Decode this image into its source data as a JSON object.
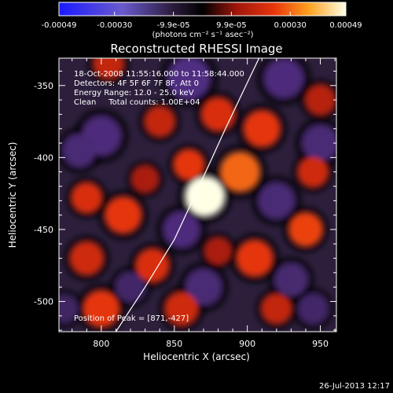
{
  "chart_data": {
    "type": "heatmap",
    "title": "Reconstructed RHESSI Image",
    "xlabel": "Heliocentric X (arcsec)",
    "ylabel": "Heliocentric Y (arcsec)",
    "xlim": [
      771,
      961
    ],
    "ylim": [
      -521,
      -331
    ],
    "xticks": [
      800,
      850,
      900,
      950
    ],
    "yticks": [
      -350,
      -400,
      -450,
      -500
    ],
    "colorbar": {
      "range": [
        -0.00049,
        0.00049
      ],
      "tick_values": [
        -0.00049,
        -0.0003,
        -9.9e-05,
        9.9e-05,
        0.0003,
        0.00049
      ],
      "tick_labels": [
        "-0.00049",
        "-0.00030",
        "-9.9e-05",
        "9.9e-05",
        "0.00030",
        "0.00049"
      ],
      "units": "(photons cm⁻² s⁻¹ asec⁻²)"
    },
    "info_lines": [
      "18-Oct-2008 11:55:16.000 to 11:58:44.000",
      "Detectors: 4F 5F 6F 7F 8F, Att 0",
      "Energy Range: 12.0 - 25.0 keV",
      "Clean     Total counts: 1.00E+04"
    ],
    "peak_label": "Position of Peak = [871,-427]",
    "peak": {
      "x": 871,
      "y": -427,
      "value": 0.00049
    },
    "sources": [
      {
        "x": 871,
        "y": -427,
        "r": 13,
        "value": 0.00049
      },
      {
        "x": 860,
        "y": -405,
        "r": 10,
        "value": 0.00024
      },
      {
        "x": 895,
        "y": -410,
        "r": 13,
        "value": 0.0003
      },
      {
        "x": 910,
        "y": -380,
        "r": 12,
        "value": 0.00024
      },
      {
        "x": 880,
        "y": -370,
        "r": 11,
        "value": 0.00022
      },
      {
        "x": 840,
        "y": -375,
        "r": 10,
        "value": 0.00018
      },
      {
        "x": 805,
        "y": -335,
        "r": 10,
        "value": 0.00018
      },
      {
        "x": 790,
        "y": -428,
        "r": 10,
        "value": 0.00022
      },
      {
        "x": 815,
        "y": -440,
        "r": 12,
        "value": 0.00024
      },
      {
        "x": 790,
        "y": -470,
        "r": 11,
        "value": 0.0002
      },
      {
        "x": 835,
        "y": -475,
        "r": 11,
        "value": 0.00022
      },
      {
        "x": 800,
        "y": -505,
        "r": 12,
        "value": 0.00024
      },
      {
        "x": 855,
        "y": -505,
        "r": 11,
        "value": 0.0002
      },
      {
        "x": 905,
        "y": -470,
        "r": 12,
        "value": 0.00024
      },
      {
        "x": 940,
        "y": -450,
        "r": 11,
        "value": 0.00026
      },
      {
        "x": 945,
        "y": -410,
        "r": 10,
        "value": 0.0002
      },
      {
        "x": 920,
        "y": -505,
        "r": 10,
        "value": 0.00018
      },
      {
        "x": 950,
        "y": -360,
        "r": 10,
        "value": 0.00016
      },
      {
        "x": 830,
        "y": -415,
        "r": 9,
        "value": 0.00014
      },
      {
        "x": 880,
        "y": -465,
        "r": 9,
        "value": 0.00014
      },
      {
        "x": 800,
        "y": -385,
        "r": 13,
        "value": -0.0002
      },
      {
        "x": 860,
        "y": -345,
        "r": 14,
        "value": -0.00022
      },
      {
        "x": 925,
        "y": -345,
        "r": 13,
        "value": -0.0002
      },
      {
        "x": 950,
        "y": -390,
        "r": 12,
        "value": -0.00018
      },
      {
        "x": 920,
        "y": -430,
        "r": 12,
        "value": -0.00018
      },
      {
        "x": 855,
        "y": -450,
        "r": 12,
        "value": -0.0002
      },
      {
        "x": 785,
        "y": -395,
        "r": 11,
        "value": -0.00018
      },
      {
        "x": 870,
        "y": -490,
        "r": 12,
        "value": -0.00018
      },
      {
        "x": 930,
        "y": -485,
        "r": 11,
        "value": -0.00016
      },
      {
        "x": 820,
        "y": -490,
        "r": 10,
        "value": -0.00014
      },
      {
        "x": 945,
        "y": -505,
        "r": 10,
        "value": -0.00014
      },
      {
        "x": 775,
        "y": -505,
        "r": 9,
        "value": -0.00012
      }
    ],
    "limb_curve": [
      {
        "x": 810,
        "y": -521
      },
      {
        "x": 830,
        "y": -490
      },
      {
        "x": 850,
        "y": -457
      },
      {
        "x": 867,
        "y": -420
      },
      {
        "x": 885,
        "y": -380
      },
      {
        "x": 900,
        "y": -348
      },
      {
        "x": 908,
        "y": -331
      }
    ]
  },
  "footer": {
    "timestamp": "26-Jul-2013 12:17"
  }
}
